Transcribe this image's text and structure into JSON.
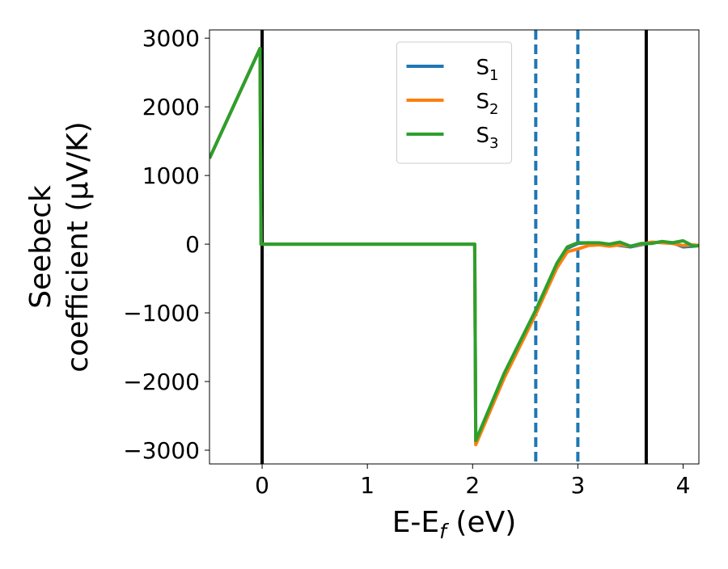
{
  "chart_data": {
    "type": "line",
    "xlabel": [
      "E-E",
      "f",
      " (eV)"
    ],
    "ylabel": [
      "Seebeck",
      "coefficient  (μV/K)"
    ],
    "x": [
      -0.5,
      -0.02,
      -0.01,
      2.02,
      2.03,
      2.3,
      2.6,
      2.8,
      2.9,
      3.0,
      3.1,
      3.2,
      3.3,
      3.4,
      3.5,
      3.6,
      3.7,
      3.8,
      3.9,
      4.0,
      4.1,
      4.15
    ],
    "series": [
      {
        "name": [
          "S",
          "1"
        ],
        "color": "#1f77b4",
        "values": [
          1250,
          2850,
          0,
          0,
          -2880,
          -1900,
          -980,
          -300,
          -60,
          10,
          20,
          10,
          0,
          -20,
          -40,
          -10,
          20,
          30,
          20,
          -40,
          -30,
          -20
        ]
      },
      {
        "name": [
          "S",
          "2"
        ],
        "color": "#ff7f0e",
        "values": [
          1250,
          2850,
          0,
          0,
          -2920,
          -1950,
          -1020,
          -350,
          -110,
          -70,
          -20,
          -10,
          -30,
          -10,
          -30,
          0,
          30,
          20,
          10,
          -20,
          -10,
          -20
        ]
      },
      {
        "name": [
          "S",
          "3"
        ],
        "color": "#2ca02c",
        "values": [
          1250,
          2850,
          0,
          0,
          -2860,
          -1880,
          -960,
          -280,
          -40,
          20,
          20,
          20,
          0,
          30,
          -30,
          10,
          10,
          40,
          20,
          50,
          -30,
          -20
        ]
      }
    ],
    "vlines": [
      {
        "x": 0,
        "color": "#000000",
        "style": "solid"
      },
      {
        "x": 2.6,
        "color": "#1f77b4",
        "style": "dashed"
      },
      {
        "x": 3.0,
        "color": "#1f77b4",
        "style": "dashed"
      },
      {
        "x": 3.65,
        "color": "#000000",
        "style": "solid"
      }
    ],
    "xlim": [
      -0.5,
      4.15
    ],
    "xticks": [
      0,
      1,
      2,
      3,
      4
    ],
    "ylim": [
      -3200,
      3120
    ],
    "yticks": [
      {
        "value": -3000,
        "label": "−3000"
      },
      {
        "value": -2000,
        "label": "−2000"
      },
      {
        "value": -1000,
        "label": "−1000"
      },
      0,
      1000,
      2000,
      3000
    ],
    "legend_loc": "upper center",
    "grid": false
  }
}
